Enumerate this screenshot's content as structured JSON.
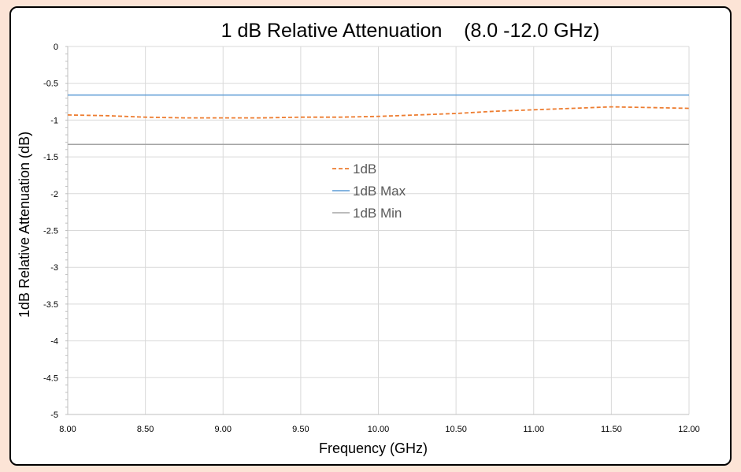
{
  "chart_data": {
    "type": "line",
    "title": "1 dB Relative Attenuation    (8.0 -12.0 GHz)",
    "xlabel": "Frequency (GHz)",
    "ylabel": "1dB Relative Attenuation (dB)",
    "xlim": [
      8.0,
      12.0
    ],
    "ylim": [
      -5,
      0
    ],
    "x_ticks": [
      8.0,
      8.5,
      9.0,
      9.5,
      10.0,
      10.5,
      11.0,
      11.5,
      12.0
    ],
    "x_tick_labels": [
      "8.00",
      "8.50",
      "9.00",
      "9.50",
      "10.00",
      "10.50",
      "11.00",
      "11.50",
      "12.00"
    ],
    "y_ticks": [
      0,
      -0.5,
      -1,
      -1.5,
      -2,
      -2.5,
      -3,
      -3.5,
      -4,
      -4.5,
      -5
    ],
    "y_tick_labels": [
      "0",
      "-0.5",
      "-1",
      "-1.5",
      "-2",
      "-2.5",
      "-3",
      "-3.5",
      "-4",
      "-4.5",
      "-5"
    ],
    "grid": true,
    "legend_position": "center",
    "series": [
      {
        "name": "1dB",
        "color": "#ed7d31",
        "dashed": true,
        "x": [
          8.0,
          8.25,
          8.5,
          8.75,
          9.0,
          9.25,
          9.5,
          9.75,
          10.0,
          10.25,
          10.5,
          10.75,
          11.0,
          11.25,
          11.5,
          11.75,
          12.0
        ],
        "y": [
          -0.93,
          -0.94,
          -0.96,
          -0.97,
          -0.97,
          -0.97,
          -0.96,
          -0.96,
          -0.95,
          -0.93,
          -0.91,
          -0.88,
          -0.86,
          -0.84,
          -0.82,
          -0.83,
          -0.84
        ]
      },
      {
        "name": "1dB Max",
        "color": "#5b9bd5",
        "dashed": false,
        "x": [
          8.0,
          12.0
        ],
        "y": [
          -0.66,
          -0.66
        ]
      },
      {
        "name": "1dB Min",
        "color": "#a5a5a5",
        "dashed": false,
        "x": [
          8.0,
          12.0
        ],
        "y": [
          -1.33,
          -1.33
        ]
      }
    ]
  }
}
